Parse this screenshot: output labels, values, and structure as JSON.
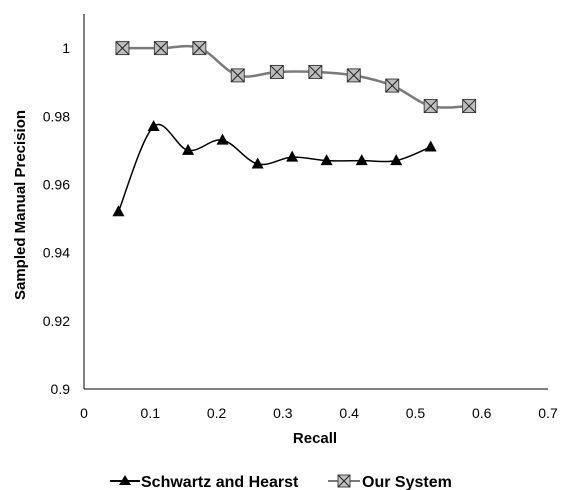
{
  "chart_data": {
    "type": "line",
    "xlabel": "Recall",
    "ylabel": "Sampled Manual Precision",
    "xlim": [
      0,
      0.7
    ],
    "ylim": [
      0.9,
      1.01
    ],
    "x_ticks": [
      "0",
      "0.1",
      "0.2",
      "0.3",
      "0.4",
      "0.5",
      "0.6",
      "0.7"
    ],
    "y_ticks": [
      "0.9",
      "0.92",
      "0.94",
      "0.96",
      "0.98",
      "1"
    ],
    "grid": false,
    "legend_position": "bottom",
    "series": [
      {
        "name": "Schwartz and Hearst",
        "marker": "triangle",
        "color": "#000000",
        "x": [
          0.052,
          0.105,
          0.157,
          0.209,
          0.262,
          0.314,
          0.366,
          0.419,
          0.471,
          0.523
        ],
        "y": [
          0.952,
          0.977,
          0.97,
          0.973,
          0.966,
          0.968,
          0.967,
          0.967,
          0.967,
          0.971
        ]
      },
      {
        "name": "Our System",
        "marker": "boxed-x",
        "color": "#7a7a7a",
        "x": [
          0.058,
          0.116,
          0.174,
          0.232,
          0.291,
          0.349,
          0.407,
          0.465,
          0.523,
          0.581
        ],
        "y": [
          1.0,
          1.0,
          1.0,
          0.992,
          0.993,
          0.993,
          0.992,
          0.989,
          0.983,
          0.983
        ]
      }
    ]
  }
}
